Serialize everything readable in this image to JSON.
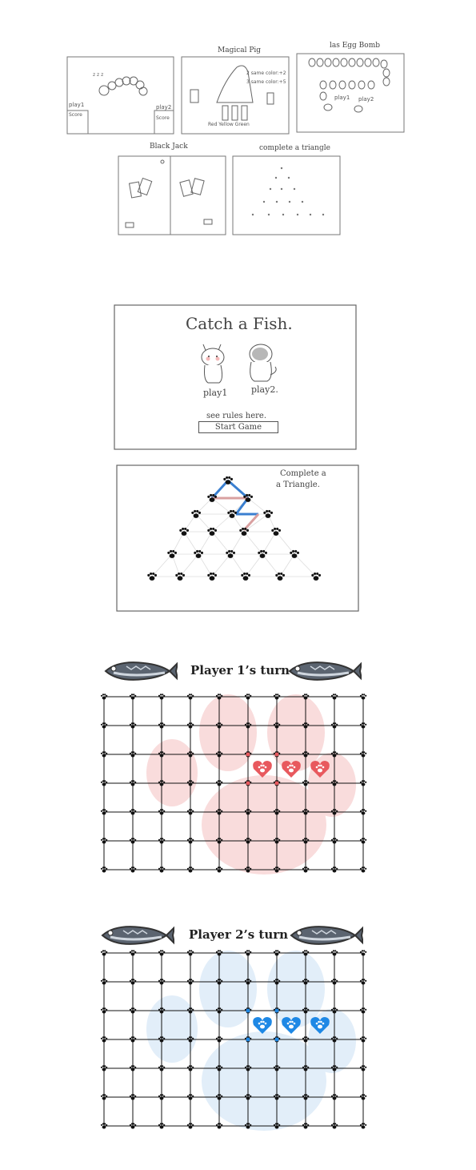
{
  "sketches": {
    "snake": {
      "p1_label": "play1",
      "p1_sub": "Score",
      "p2_label": "play2",
      "p2_sub": "Score"
    },
    "magical_pig": {
      "title": "Magical Pig",
      "rule1": "2 same color:+2",
      "rule2": "3 same color:+5",
      "colors": "Red  Yellow  Green"
    },
    "egg_bomb": {
      "title": "las Egg Bomb",
      "p1": "play1",
      "p2": "play2"
    },
    "black_jack": {
      "title": "Black Jack"
    },
    "triangle": {
      "title": "complete a triangle"
    }
  },
  "catch_fish": {
    "title": "Catch a Fish.",
    "player1": "play1",
    "player2": "play2.",
    "rules_link": "see rules here.",
    "start_button": "Start Game"
  },
  "triangle_sketch": {
    "title_line1": "Complete a",
    "title_line2": "a Triangle."
  },
  "board1": {
    "title": "Player 1’s turn",
    "accent": "#e8595e",
    "paw_bg": "#f9dcdc"
  },
  "board2": {
    "title": "Player 2’s turn",
    "accent": "#1e88e5",
    "paw_bg": "#e2eef9"
  },
  "icons": {
    "fish": "fish-icon",
    "paw": "paw-print-icon",
    "heart_paw": "heart-paw-icon",
    "cat": "cat-icon"
  }
}
